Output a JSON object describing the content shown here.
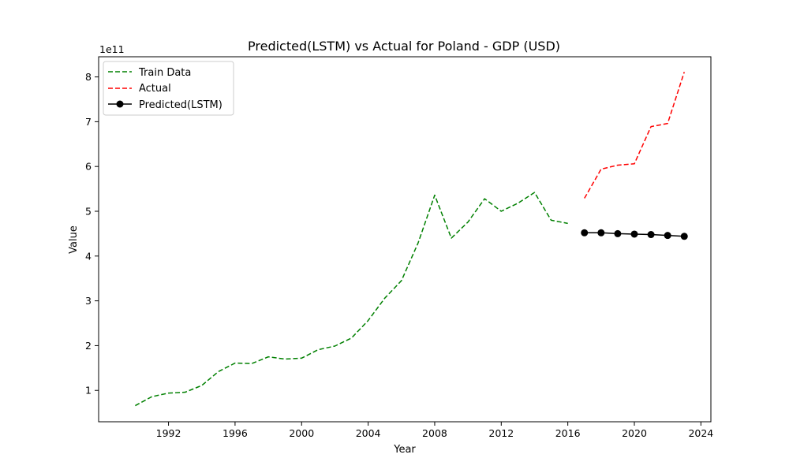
{
  "chart_data": {
    "type": "line",
    "title": "Predicted(LSTM) vs Actual for Poland - GDP (USD)",
    "xlabel": "Year",
    "ylabel": "Value",
    "y_offset_label": "1e11",
    "xlim": [
      1987.8,
      2024.6
    ],
    "ylim": [
      0.3,
      8.45
    ],
    "x_ticks": [
      1992,
      1996,
      2000,
      2004,
      2008,
      2012,
      2016,
      2020,
      2024
    ],
    "x_tick_labels": [
      "1992",
      "1996",
      "2000",
      "2004",
      "2008",
      "2012",
      "2016",
      "2020",
      "2024"
    ],
    "y_ticks": [
      1,
      2,
      3,
      4,
      5,
      6,
      7,
      8
    ],
    "y_tick_labels": [
      "1",
      "2",
      "3",
      "4",
      "5",
      "6",
      "7",
      "8"
    ],
    "grid": false,
    "legend_position": "top-left",
    "series": [
      {
        "name": "Train Data",
        "color": "#008000",
        "style": "dashed",
        "x": [
          1990,
          1991,
          1992,
          1993,
          1994,
          1995,
          1996,
          1997,
          1998,
          1999,
          2000,
          2001,
          2002,
          2003,
          2004,
          2005,
          2006,
          2007,
          2008,
          2009,
          2010,
          2011,
          2012,
          2013,
          2014,
          2015,
          2016
        ],
        "y": [
          0.66,
          0.86,
          0.94,
          0.96,
          1.11,
          1.42,
          1.61,
          1.6,
          1.75,
          1.7,
          1.72,
          1.91,
          1.99,
          2.17,
          2.56,
          3.06,
          3.45,
          4.29,
          5.36,
          4.4,
          4.76,
          5.28,
          5.0,
          5.18,
          5.42,
          4.8,
          4.73
        ]
      },
      {
        "name": "Actual",
        "color": "#ff0000",
        "style": "dashed",
        "x": [
          2017,
          2018,
          2019,
          2020,
          2021,
          2022,
          2023
        ],
        "y": [
          5.29,
          5.94,
          6.03,
          6.06,
          6.89,
          6.96,
          8.11
        ]
      },
      {
        "name": "Predicted(LSTM)",
        "color": "#000000",
        "style": "solid-marker",
        "x": [
          2017,
          2018,
          2019,
          2020,
          2021,
          2022,
          2023
        ],
        "y": [
          4.52,
          4.52,
          4.5,
          4.49,
          4.48,
          4.46,
          4.44
        ]
      }
    ]
  }
}
